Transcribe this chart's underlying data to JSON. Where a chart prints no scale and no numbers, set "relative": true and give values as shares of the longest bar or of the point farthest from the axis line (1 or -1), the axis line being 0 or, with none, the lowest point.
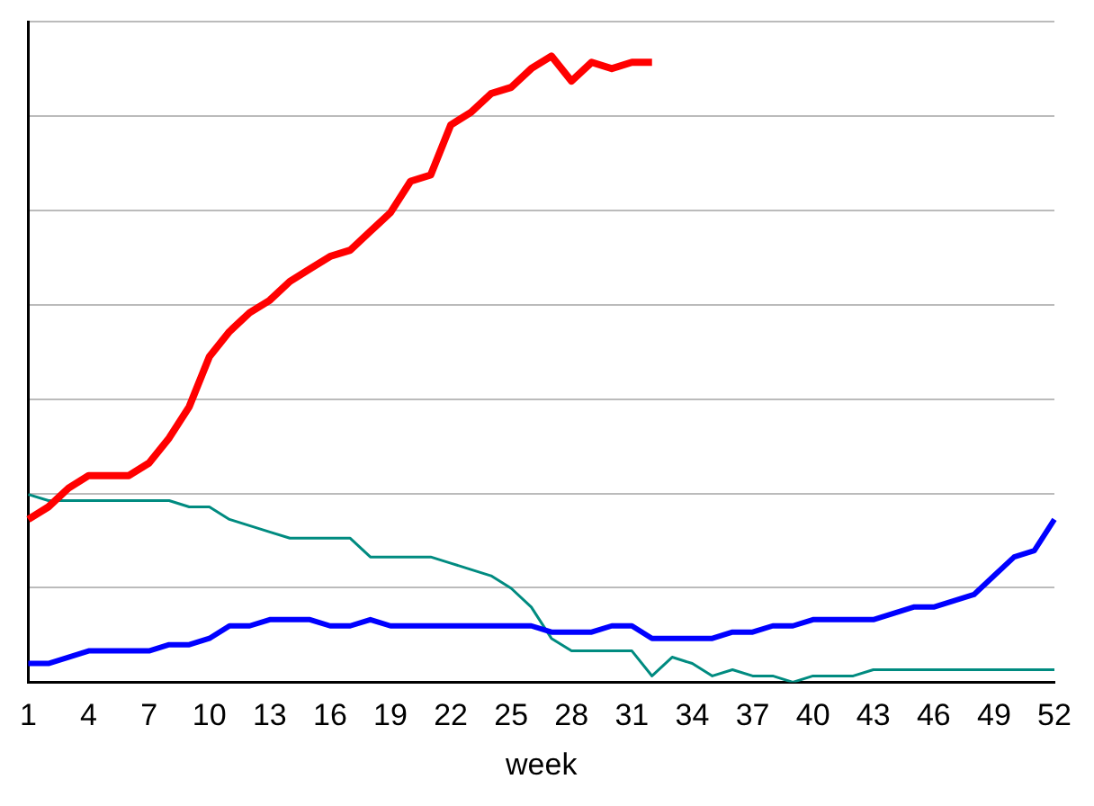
{
  "chart_data": {
    "type": "line",
    "relative": true,
    "xlabel": "week",
    "grid": "y",
    "legend": false,
    "marker": "none",
    "line_style": "solid",
    "categories": [
      "1",
      null,
      null,
      "4",
      null,
      null,
      "7",
      null,
      null,
      "10",
      null,
      null,
      "13",
      null,
      null,
      "16",
      null,
      null,
      "19",
      null,
      null,
      "22",
      null,
      null,
      "25",
      null,
      null,
      "28",
      null,
      null,
      "31",
      null,
      null,
      "34",
      null,
      null,
      "37",
      null,
      null,
      "40",
      null,
      null,
      "43",
      null,
      null,
      "46",
      null,
      null,
      "49",
      null,
      null,
      "52"
    ],
    "series": [
      {
        "color": "#ff0000",
        "values": [
          0.26,
          0.28,
          0.31,
          0.33,
          0.33,
          0.33,
          0.35,
          0.39,
          0.44,
          0.52,
          0.56,
          0.59,
          0.61,
          0.64,
          0.66,
          0.68,
          0.69,
          0.72,
          0.75,
          0.8,
          0.81,
          0.89,
          0.91,
          0.94,
          0.95,
          0.98,
          1,
          0.96,
          0.99,
          0.98,
          0.99,
          0.99,
          null,
          null,
          null,
          null,
          null,
          null,
          null,
          null,
          null,
          null,
          null,
          null,
          null,
          null,
          null,
          null,
          null,
          null,
          null,
          null
        ]
      },
      {
        "color": "#0000ff",
        "values": [
          0.03,
          0.03,
          0.04,
          0.05,
          0.05,
          0.05,
          0.05,
          0.06,
          0.06,
          0.07,
          0.09,
          0.09,
          0.1,
          0.1,
          0.1,
          0.09,
          0.09,
          0.1,
          0.09,
          0.09,
          0.09,
          0.09,
          0.09,
          0.09,
          0.09,
          0.09,
          0.08,
          0.08,
          0.08,
          0.09,
          0.09,
          0.07,
          0.07,
          0.07,
          0.07,
          0.08,
          0.08,
          0.09,
          0.09,
          0.1,
          0.1,
          0.1,
          0.1,
          0.11,
          0.12,
          0.12,
          0.13,
          0.14,
          0.17,
          0.2,
          0.21,
          0.26
        ]
      },
      {
        "color": "#008b80",
        "values": [
          0.3,
          0.29,
          0.29,
          0.29,
          0.29,
          0.29,
          0.29,
          0.29,
          0.28,
          0.28,
          0.26,
          0.25,
          0.24,
          0.23,
          0.23,
          0.23,
          0.23,
          0.2,
          0.2,
          0.2,
          0.2,
          0.19,
          0.18,
          0.17,
          0.15,
          0.12,
          0.07,
          0.05,
          0.05,
          0.05,
          0.05,
          0.01,
          0.04,
          0.03,
          0.01,
          0.02,
          0.01,
          0.01,
          0,
          0.01,
          0.01,
          0.01,
          0.02,
          0.02,
          0.02,
          0.02,
          0.02,
          0.02,
          0.02,
          0.02,
          0.02,
          0.02
        ]
      }
    ]
  }
}
